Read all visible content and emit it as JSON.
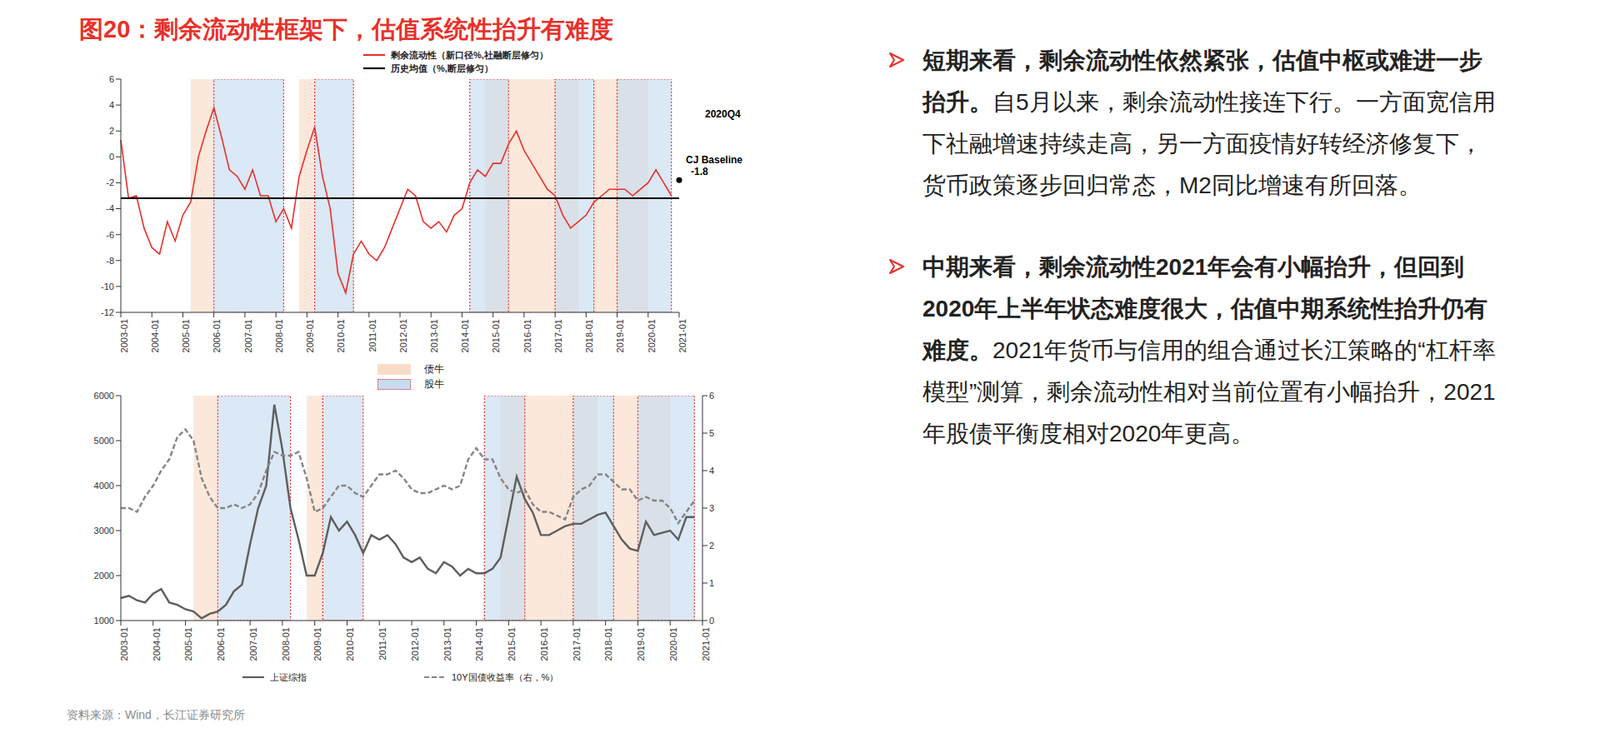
{
  "title": "图20：剩余流动性框架下，估值系统性抬升有难度",
  "region_legend": [
    {
      "name": "债牛",
      "color": "#f9dcc8"
    },
    {
      "name": "股牛",
      "color": "#c7dcf0",
      "line_style": "dotted"
    }
  ],
  "chart_data": [
    {
      "type": "line",
      "x": [
        "2003-01",
        "2003-04",
        "2003-07",
        "2003-10",
        "2004-01",
        "2004-04",
        "2004-07",
        "2004-10",
        "2005-01",
        "2005-04",
        "2005-07",
        "2005-10",
        "2006-01",
        "2006-04",
        "2006-07",
        "2006-10",
        "2007-01",
        "2007-04",
        "2007-07",
        "2007-10",
        "2008-01",
        "2008-04",
        "2008-07",
        "2008-10",
        "2009-01",
        "2009-04",
        "2009-07",
        "2009-10",
        "2010-01",
        "2010-04",
        "2010-07",
        "2010-10",
        "2011-01",
        "2011-04",
        "2011-07",
        "2011-10",
        "2012-01",
        "2012-04",
        "2012-07",
        "2012-10",
        "2013-01",
        "2013-04",
        "2013-07",
        "2013-10",
        "2014-01",
        "2014-04",
        "2014-07",
        "2014-10",
        "2015-01",
        "2015-04",
        "2015-07",
        "2015-10",
        "2016-01",
        "2016-04",
        "2016-07",
        "2016-10",
        "2017-01",
        "2017-04",
        "2017-07",
        "2017-10",
        "2018-01",
        "2018-04",
        "2018-07",
        "2018-10",
        "2019-01",
        "2019-04",
        "2019-07",
        "2019-10",
        "2020-01",
        "2020-04",
        "2020-07",
        "2020-10",
        "2021-01"
      ],
      "xticks": [
        "2003-01",
        "2004-01",
        "2005-01",
        "2006-01",
        "2007-01",
        "2008-01",
        "2009-01",
        "2010-01",
        "2011-01",
        "2012-01",
        "2013-01",
        "2014-01",
        "2015-01",
        "2016-01",
        "2017-01",
        "2018-01",
        "2019-01",
        "2020-01",
        "2021-01"
      ],
      "ylim": [
        -12,
        6
      ],
      "yticks": [
        -12,
        -10,
        -8,
        -6,
        -4,
        -2,
        0,
        2,
        4,
        6
      ],
      "legend": "top",
      "series": [
        {
          "name": "剩余流动性（新口径%,社融断层修匀）",
          "color": "#e8302a",
          "values": [
            1.3,
            -3.2,
            -3.0,
            -5.5,
            -7.0,
            -7.5,
            -5.0,
            -6.5,
            -4.5,
            -3.5,
            0,
            2.0,
            3.8,
            1.5,
            -1.0,
            -1.5,
            -2.5,
            -1.0,
            -3.0,
            -3.0,
            -5.0,
            -4.0,
            -5.5,
            -1.5,
            0.5,
            2.3,
            -1.5,
            -4.0,
            -9.0,
            -10.5,
            -7.5,
            -6.5,
            -7.5,
            -8.0,
            -7.0,
            -5.5,
            -4.0,
            -2.5,
            -3.0,
            -5.0,
            -5.5,
            -5.0,
            -5.8,
            -4.5,
            -4.0,
            -2.0,
            -1.0,
            -1.5,
            -0.5,
            -0.5,
            1.0,
            2.0,
            0.5,
            -0.5,
            -1.5,
            -2.5,
            -3.0,
            -4.5,
            -5.5,
            -5.0,
            -4.5,
            -3.5,
            -3.0,
            -2.5,
            -2.5,
            -2.5,
            -3.0,
            -2.5,
            -2.0,
            -1.0,
            -2.0,
            -3.0,
            null
          ]
        },
        {
          "name": "历史均值（%,断层修匀）",
          "color": "#000000",
          "values": [
            -3.2,
            -3.2,
            -3.2,
            -3.2,
            -3.2,
            -3.2,
            -3.2,
            -3.2,
            -3.2,
            -3.2,
            -3.2,
            -3.2,
            -3.2,
            -3.2,
            -3.2,
            -3.2,
            -3.2,
            -3.2,
            -3.2,
            -3.2,
            -3.2,
            -3.2,
            -3.2,
            -3.2,
            -3.2,
            -3.2,
            -3.2,
            -3.2,
            -3.2,
            -3.2,
            -3.2,
            -3.2,
            -3.2,
            -3.2,
            -3.2,
            -3.2,
            -3.2,
            -3.2,
            -3.2,
            -3.2,
            -3.2,
            -3.2,
            -3.2,
            -3.2,
            -3.2,
            -3.2,
            -3.2,
            -3.2,
            -3.2,
            -3.2,
            -3.2,
            -3.2,
            -3.2,
            -3.2,
            -3.2,
            -3.2,
            -3.2,
            -3.2,
            -3.2,
            -3.2,
            -3.2,
            -3.2,
            -3.2,
            -3.2,
            -3.2,
            -3.2,
            -3.2,
            -3.2,
            -3.2,
            -3.2,
            -3.2,
            -3.2,
            -3.2
          ]
        }
      ],
      "annotations": [
        {
          "text": "2020Q4"
        },
        {
          "text": "CJ Baseline",
          "x": "2021-01",
          "value": -1.8
        }
      ],
      "shaded_regions": [
        {
          "type": "债牛",
          "start": "2005-04",
          "end": "2006-01"
        },
        {
          "type": "债牛",
          "start": "2008-10",
          "end": "2009-04"
        },
        {
          "type": "债牛",
          "start": "2014-10",
          "end": "2017-10"
        },
        {
          "type": "债牛",
          "start": "2018-04",
          "end": "2020-01"
        },
        {
          "type": "股牛",
          "start": "2006-01",
          "end": "2008-04"
        },
        {
          "type": "股牛",
          "start": "2009-04",
          "end": "2010-07"
        },
        {
          "type": "股牛",
          "start": "2014-04",
          "end": "2015-07"
        },
        {
          "type": "股牛",
          "start": "2017-01",
          "end": "2018-04"
        },
        {
          "type": "股牛",
          "start": "2019-01",
          "end": "2020-10"
        }
      ]
    },
    {
      "type": "line",
      "x": [
        "2003-01",
        "2003-04",
        "2003-07",
        "2003-10",
        "2004-01",
        "2004-04",
        "2004-07",
        "2004-10",
        "2005-01",
        "2005-04",
        "2005-07",
        "2005-10",
        "2006-01",
        "2006-04",
        "2006-07",
        "2006-10",
        "2007-01",
        "2007-04",
        "2007-07",
        "2007-10",
        "2008-01",
        "2008-04",
        "2008-07",
        "2008-10",
        "2009-01",
        "2009-04",
        "2009-07",
        "2009-10",
        "2010-01",
        "2010-04",
        "2010-07",
        "2010-10",
        "2011-01",
        "2011-04",
        "2011-07",
        "2011-10",
        "2012-01",
        "2012-04",
        "2012-07",
        "2012-10",
        "2013-01",
        "2013-04",
        "2013-07",
        "2013-10",
        "2014-01",
        "2014-04",
        "2014-07",
        "2014-10",
        "2015-01",
        "2015-04",
        "2015-07",
        "2015-10",
        "2016-01",
        "2016-04",
        "2016-07",
        "2016-10",
        "2017-01",
        "2017-04",
        "2017-07",
        "2017-10",
        "2018-01",
        "2018-04",
        "2018-07",
        "2018-10",
        "2019-01",
        "2019-04",
        "2019-07",
        "2019-10",
        "2020-01",
        "2020-04",
        "2020-07",
        "2020-10",
        "2021-01"
      ],
      "xticks": [
        "2003-01",
        "2004-01",
        "2005-01",
        "2006-01",
        "2007-01",
        "2008-01",
        "2009-01",
        "2010-01",
        "2011-01",
        "2012-01",
        "2013-01",
        "2014-01",
        "2015-01",
        "2016-01",
        "2017-01",
        "2018-01",
        "2019-01",
        "2020-01",
        "2021-01"
      ],
      "ylim": [
        1000,
        6000
      ],
      "yticks": [
        1000,
        2000,
        3000,
        4000,
        5000,
        6000
      ],
      "y2lim": [
        0,
        6
      ],
      "y2ticks": [
        0,
        1,
        2,
        3,
        4,
        5,
        6
      ],
      "legend": "bottom",
      "series": [
        {
          "name": "上证综指",
          "color": "#5e5e5e",
          "line_style": "solid",
          "values": [
            1500,
            1550,
            1450,
            1400,
            1600,
            1700,
            1400,
            1350,
            1250,
            1200,
            1050,
            1150,
            1200,
            1350,
            1650,
            1800,
            2700,
            3500,
            4000,
            5800,
            4800,
            3500,
            2800,
            2000,
            2000,
            2500,
            3300,
            3000,
            3200,
            2900,
            2500,
            2900,
            2800,
            2900,
            2700,
            2400,
            2300,
            2400,
            2150,
            2050,
            2300,
            2200,
            2000,
            2150,
            2050,
            2050,
            2150,
            2400,
            3300,
            4200,
            3700,
            3400,
            2900,
            2900,
            3000,
            3100,
            3150,
            3150,
            3250,
            3350,
            3400,
            3100,
            2800,
            2600,
            2550,
            3200,
            2900,
            2950,
            3000,
            2800,
            3300,
            3300,
            null
          ]
        },
        {
          "name": "10Y国债收益率（右，%）",
          "color": "#858585",
          "line_style": "dashed",
          "axis": "y2",
          "values": [
            3.0,
            3.0,
            2.9,
            3.3,
            3.6,
            4.0,
            4.3,
            4.9,
            5.1,
            4.8,
            3.8,
            3.3,
            3.0,
            3.0,
            3.1,
            3.0,
            3.1,
            3.4,
            4.0,
            4.5,
            4.4,
            4.4,
            4.5,
            3.8,
            2.9,
            3.0,
            3.3,
            3.6,
            3.6,
            3.4,
            3.3,
            3.6,
            3.9,
            3.9,
            4.0,
            3.8,
            3.5,
            3.4,
            3.4,
            3.5,
            3.6,
            3.5,
            3.6,
            4.3,
            4.6,
            4.3,
            4.3,
            3.8,
            3.5,
            3.4,
            3.5,
            3.1,
            2.9,
            2.9,
            2.8,
            2.7,
            3.3,
            3.5,
            3.6,
            3.9,
            3.9,
            3.7,
            3.5,
            3.5,
            3.2,
            3.3,
            3.2,
            3.2,
            3.0,
            2.6,
            2.9,
            3.2,
            null
          ]
        }
      ],
      "shaded_regions": [
        {
          "type": "债牛",
          "start": "2005-04",
          "end": "2006-01"
        },
        {
          "type": "债牛",
          "start": "2008-10",
          "end": "2009-04"
        },
        {
          "type": "债牛",
          "start": "2014-10",
          "end": "2017-10"
        },
        {
          "type": "债牛",
          "start": "2018-04",
          "end": "2020-01"
        },
        {
          "type": "股牛",
          "start": "2006-01",
          "end": "2008-04"
        },
        {
          "type": "股牛",
          "start": "2009-04",
          "end": "2010-07"
        },
        {
          "type": "股牛",
          "start": "2014-04",
          "end": "2015-07"
        },
        {
          "type": "股牛",
          "start": "2017-01",
          "end": "2018-04"
        },
        {
          "type": "股牛",
          "start": "2019-01",
          "end": "2020-10"
        }
      ]
    }
  ],
  "bullets": [
    {
      "heading": "短期来看，剩余流动性依然紧张，估值中枢或难进一步抬升。",
      "body": "自5月以来，剩余流动性接连下行。一方面宽信用下社融增速持续走高，另一方面疫情好转经济修复下，货币政策逐步回归常态，M2同比增速有所回落。"
    },
    {
      "heading": "中期来看，剩余流动性2021年会有小幅抬升，但回到2020年上半年状态难度很大，估值中期系统性抬升仍有难度。",
      "body": "2021年货币与信用的组合通过长江策略的“杠杆率模型”测算，剩余流动性相对当前位置有小幅抬升，2021年股债平衡度相对2020年更高。"
    }
  ],
  "source": "资料来源：Wind，长江证券研究所"
}
